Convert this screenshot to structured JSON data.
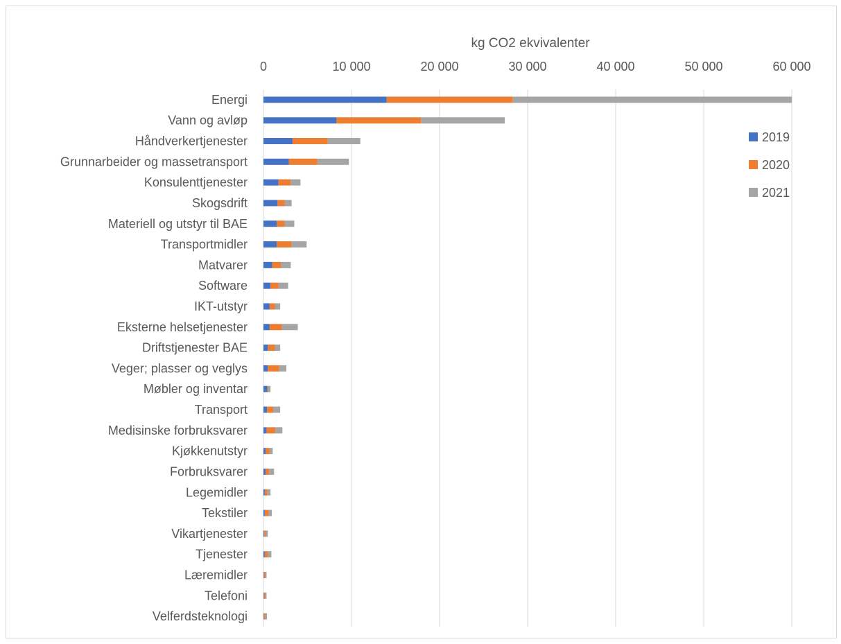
{
  "chart_data": {
    "type": "bar",
    "orientation": "horizontal",
    "stacked": true,
    "title": "",
    "xlabel": "kg CO2 ekvivalenter",
    "ylabel": "",
    "xlim": [
      0,
      60000
    ],
    "x_axis_position": "top",
    "x_ticks": [
      0,
      10000,
      20000,
      30000,
      40000,
      50000,
      60000
    ],
    "x_tick_labels": [
      "0",
      "10 000",
      "20 000",
      "30 000",
      "40 000",
      "50 000",
      "60 000"
    ],
    "grid": true,
    "legend_position": "right",
    "categories": [
      "Energi",
      "Vann og avløp",
      "Håndverkertjenester",
      "Grunnarbeider og massetransport",
      "Konsulenttjenester",
      "Skogsdrift",
      "Materiell og utstyr til BAE",
      "Transportmidler",
      "Matvarer",
      "Software",
      "IKT-utstyr",
      "Eksterne helsetjenester",
      "Driftstjenester BAE",
      "Veger; plasser og veglys",
      "Møbler og inventar",
      "Transport",
      "Medisinske forbruksvarer",
      "Kjøkkenutstyr",
      "Forbruksvarer",
      "Legemidler",
      "Tekstiler",
      "Vikartjenester",
      "Tjenester",
      "Læremidler",
      "Telefoni",
      "Velferdsteknologi"
    ],
    "series": [
      {
        "name": "2019",
        "color": "#4472C4",
        "values": [
          14000,
          8300,
          3300,
          2900,
          1700,
          1600,
          1500,
          1500,
          1000,
          800,
          700,
          700,
          500,
          500,
          450,
          400,
          350,
          250,
          250,
          150,
          150,
          100,
          150,
          50,
          50,
          50
        ]
      },
      {
        "name": "2020",
        "color": "#ED7D31",
        "values": [
          14300,
          9600,
          4000,
          3200,
          1400,
          800,
          900,
          1700,
          1000,
          900,
          600,
          1400,
          800,
          1300,
          100,
          700,
          1000,
          450,
          400,
          300,
          450,
          200,
          350,
          150,
          150,
          150
        ]
      },
      {
        "name": "2021",
        "color": "#A5A5A5",
        "values": [
          31700,
          9500,
          3700,
          3600,
          1100,
          800,
          1100,
          1700,
          1100,
          1100,
          600,
          1800,
          600,
          800,
          250,
          800,
          800,
          350,
          550,
          350,
          350,
          200,
          400,
          150,
          150,
          200
        ]
      }
    ]
  }
}
